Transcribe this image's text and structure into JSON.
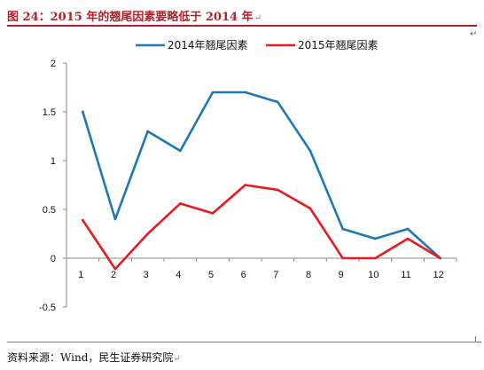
{
  "figure": {
    "title": "图 24：2015 年的翘尾因素要略低于 2014 年",
    "source": "资料来源：Wind，民生证券研究院",
    "paragraph_mark": "↵"
  },
  "chart_data": {
    "type": "line",
    "title": "",
    "xlabel": "",
    "ylabel": "",
    "categories": [
      "1",
      "2",
      "3",
      "4",
      "5",
      "6",
      "7",
      "8",
      "9",
      "10",
      "11",
      "12"
    ],
    "yticks": [
      "2",
      "1.5",
      "1",
      "0.5",
      "0",
      "-0.5"
    ],
    "ytick_values": [
      2,
      1.5,
      1,
      0.5,
      0,
      -0.5
    ],
    "ylim": [
      -0.5,
      2
    ],
    "grid": false,
    "legend_position": "top",
    "series": [
      {
        "name": "2014年翘尾因素",
        "color": "#1f77b4",
        "values": [
          1.5,
          0.4,
          1.3,
          1.1,
          1.7,
          1.7,
          1.6,
          1.1,
          0.3,
          0.2,
          0.3,
          0.0
        ]
      },
      {
        "name": "2015年翘尾因素",
        "color": "#e8191f",
        "values": [
          0.39,
          -0.11,
          0.25,
          0.56,
          0.46,
          0.75,
          0.7,
          0.51,
          0.0,
          0.0,
          0.2,
          0.0
        ]
      }
    ]
  }
}
